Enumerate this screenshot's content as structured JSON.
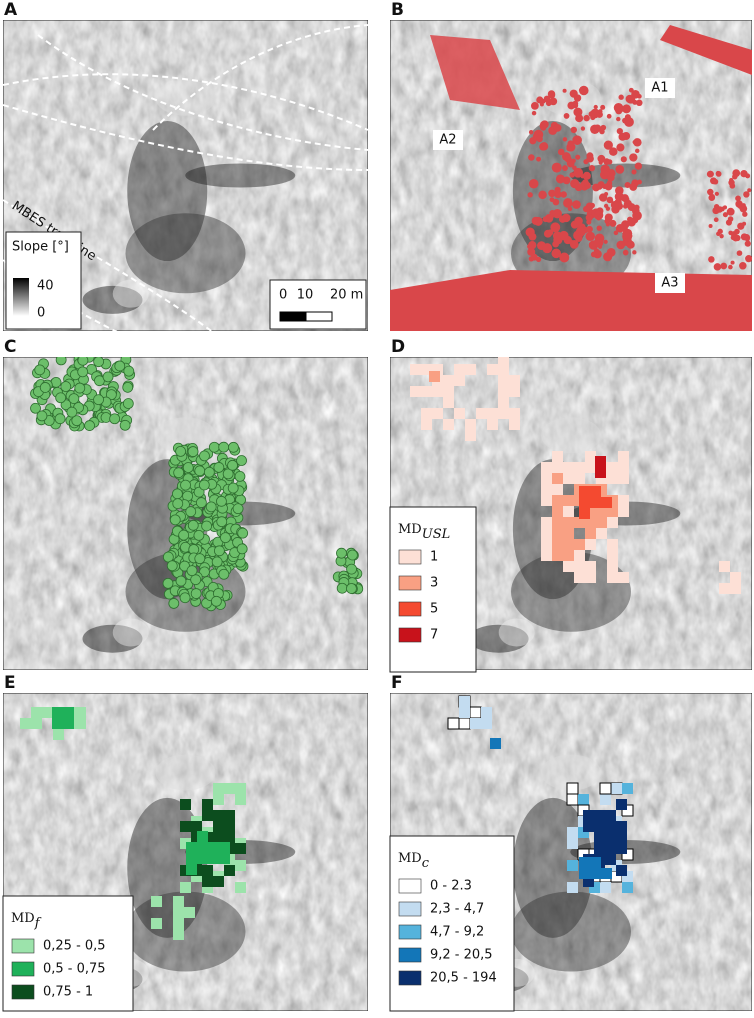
{
  "panel_a": {
    "label": "A",
    "trackline_label": "MBES trackline",
    "legend": {
      "title": "Slope [°]",
      "max": "40",
      "min": "0"
    },
    "scale_bar": [
      "0",
      "10",
      "20 m"
    ]
  },
  "panel_b": {
    "label": "B",
    "areas": [
      "A1",
      "A2",
      "A3"
    ]
  },
  "panel_c": {
    "label": "C"
  },
  "panel_d": {
    "label": "D",
    "legend": {
      "title": "MD",
      "subscript": "USL",
      "items": [
        {
          "label": "1",
          "color": "#fde0d6"
        },
        {
          "label": "3",
          "color": "#f9a083"
        },
        {
          "label": "5",
          "color": "#f44a30"
        },
        {
          "label": "7",
          "color": "#c8121b"
        }
      ]
    }
  },
  "panel_e": {
    "label": "E",
    "legend": {
      "title": "MD",
      "subscript": "f",
      "items": [
        {
          "label": "0,25 - 0,5",
          "color": "#9ce3ab"
        },
        {
          "label": "0,5 - 0,75",
          "color": "#1fb15a"
        },
        {
          "label": "0,75 - 1",
          "color": "#0c4d1e"
        }
      ]
    }
  },
  "panel_f": {
    "label": "F",
    "legend": {
      "title": "MD",
      "subscript": "c",
      "items": [
        {
          "label": "0 - 2.3",
          "color": "#ffffff"
        },
        {
          "label": "2,3 - 4,7",
          "color": "#c3dcf0"
        },
        {
          "label": "4,7 - 9,2",
          "color": "#55b3dc"
        },
        {
          "label": "9,2 - 20,5",
          "color": "#1376b8"
        },
        {
          "label": "20,5 - 194",
          "color": "#0a2f6e"
        }
      ]
    }
  }
}
